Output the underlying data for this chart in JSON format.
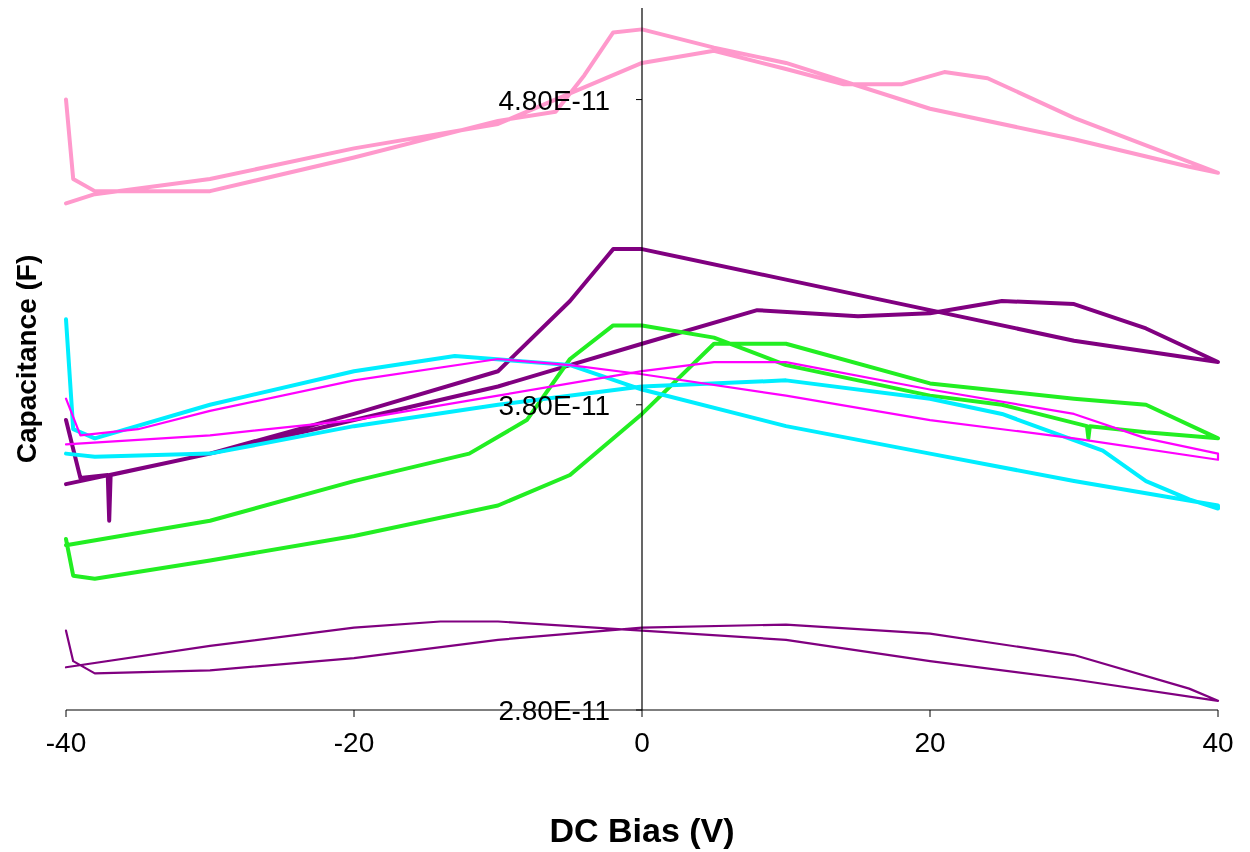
{
  "chart_data": {
    "type": "line",
    "xlabel": "DC Bias (V)",
    "ylabel": "Capacitance (F)",
    "xlim": [
      -40,
      40
    ],
    "xticks": [
      -40,
      -20,
      0,
      20,
      40
    ],
    "ylim": [
      2.8e-11,
      5.1e-11
    ],
    "yticks": [
      {
        "value": 2.8e-11,
        "label": "2.80E-11"
      },
      {
        "value": 3.8e-11,
        "label": "3.80E-11"
      },
      {
        "value": 4.8e-11,
        "label": "4.80E-11"
      }
    ],
    "grid": false,
    "marker": "none",
    "line_style": "solid",
    "series": [
      {
        "color": "#ff99cc",
        "x": [
          -40,
          -39.5,
          -38,
          -30,
          -20,
          -10,
          -6,
          -4,
          -2,
          0,
          5,
          10,
          20,
          30,
          38,
          40,
          40,
          35,
          30,
          24,
          21,
          18,
          14,
          10,
          5,
          0,
          -5,
          -10,
          -20,
          -30,
          -38,
          -40
        ],
        "values": [
          4.8e-11,
          4.54e-11,
          4.5e-11,
          4.5e-11,
          4.61e-11,
          4.73e-11,
          4.76e-11,
          4.88e-11,
          5.02e-11,
          5.03e-11,
          4.97e-11,
          4.92e-11,
          4.77e-11,
          4.67e-11,
          4.58e-11,
          4.56e-11,
          4.56e-11,
          4.65e-11,
          4.74e-11,
          4.87e-11,
          4.89e-11,
          4.85e-11,
          4.85e-11,
          4.9e-11,
          4.96e-11,
          4.92e-11,
          4.82e-11,
          4.72e-11,
          4.64e-11,
          4.54e-11,
          4.49e-11,
          4.46e-11
        ]
      },
      {
        "color": "#800080",
        "x": [
          -40,
          -39,
          -37.1,
          -37,
          -36.9,
          -30,
          -20,
          -10,
          -5,
          -2,
          0,
          10,
          20,
          30,
          40,
          40,
          35,
          30,
          25,
          20,
          15,
          8,
          0,
          -10,
          -20,
          -30,
          -40
        ],
        "values": [
          3.75e-11,
          3.56e-11,
          3.57e-11,
          3.42e-11,
          3.57e-11,
          3.64e-11,
          3.77e-11,
          3.91e-11,
          4.14e-11,
          4.31e-11,
          4.31e-11,
          4.21e-11,
          4.11e-11,
          4.01e-11,
          3.94e-11,
          3.94e-11,
          4.05e-11,
          4.13e-11,
          4.14e-11,
          4.1e-11,
          4.09e-11,
          4.11e-11,
          4e-11,
          3.86e-11,
          3.75e-11,
          3.64e-11,
          3.54e-11
        ]
      },
      {
        "color": "#22ee22",
        "x": [
          -40,
          -39.5,
          -38,
          -30,
          -20,
          -10,
          -5,
          0,
          5,
          10,
          20,
          30,
          35,
          40,
          40,
          35,
          31.1,
          31,
          30.9,
          25,
          20,
          10,
          5,
          0,
          -2,
          -5,
          -8,
          -12,
          -20,
          -30,
          -40
        ],
        "values": [
          3.36e-11,
          3.24e-11,
          3.23e-11,
          3.29e-11,
          3.37e-11,
          3.47e-11,
          3.57e-11,
          3.77e-11,
          4e-11,
          4e-11,
          3.87e-11,
          3.82e-11,
          3.8e-11,
          3.69e-11,
          3.69e-11,
          3.71e-11,
          3.73e-11,
          3.69e-11,
          3.73e-11,
          3.8e-11,
          3.83e-11,
          3.93e-11,
          4.02e-11,
          4.06e-11,
          4.06e-11,
          3.95e-11,
          3.75e-11,
          3.64e-11,
          3.55e-11,
          3.42e-11,
          3.34e-11
        ]
      },
      {
        "color": "#00eeff",
        "x": [
          -40,
          -39.5,
          -38,
          -30,
          -20,
          -13,
          -5,
          0,
          10,
          20,
          30,
          40,
          40,
          38,
          35,
          32,
          25,
          20,
          10,
          0,
          -10,
          -20,
          -30,
          -38,
          -40
        ],
        "values": [
          4.08e-11,
          3.72e-11,
          3.69e-11,
          3.8e-11,
          3.91e-11,
          3.96e-11,
          3.93e-11,
          3.85e-11,
          3.73e-11,
          3.64e-11,
          3.55e-11,
          3.47e-11,
          3.46e-11,
          3.49e-11,
          3.55e-11,
          3.65e-11,
          3.77e-11,
          3.82e-11,
          3.88e-11,
          3.86e-11,
          3.8e-11,
          3.73e-11,
          3.64e-11,
          3.63e-11,
          3.64e-11
        ]
      },
      {
        "color": "#ff00ff",
        "x": [
          -40,
          -39,
          -35,
          -30,
          -20,
          -10,
          -5,
          0,
          10,
          20,
          30,
          40,
          40,
          35,
          30,
          20,
          10,
          5,
          0,
          -10,
          -20,
          -30,
          -40
        ],
        "values": [
          3.82e-11,
          3.7e-11,
          3.72e-11,
          3.78e-11,
          3.88e-11,
          3.95e-11,
          3.93e-11,
          3.9e-11,
          3.83e-11,
          3.75e-11,
          3.69e-11,
          3.62e-11,
          3.64e-11,
          3.69e-11,
          3.77e-11,
          3.85e-11,
          3.94e-11,
          3.94e-11,
          3.91e-11,
          3.83e-11,
          3.75e-11,
          3.7e-11,
          3.67e-11
        ]
      },
      {
        "color": "#800080",
        "x": [
          -40,
          -39.5,
          -38,
          -30,
          -20,
          -10,
          0,
          10,
          20,
          30,
          38,
          40,
          40,
          30,
          20,
          10,
          0,
          -10,
          -14,
          -20,
          -30,
          -40
        ],
        "values": [
          3.06e-11,
          2.96e-11,
          2.92e-11,
          2.93e-11,
          2.97e-11,
          3.03e-11,
          3.07e-11,
          3.08e-11,
          3.05e-11,
          2.98e-11,
          2.87e-11,
          2.83e-11,
          2.83e-11,
          2.9e-11,
          2.96e-11,
          3.03e-11,
          3.06e-11,
          3.09e-11,
          3.09e-11,
          3.07e-11,
          3.01e-11,
          2.94e-11
        ]
      }
    ]
  }
}
